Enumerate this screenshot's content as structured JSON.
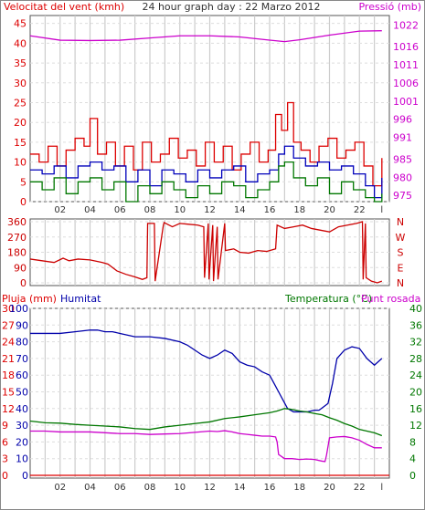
{
  "chart_data": [
    {
      "type": "line",
      "title": "24 hour graph day : 22 Marzo 2012",
      "left_axis": {
        "label": "Velocitat del vent (kmh)",
        "ticks": [
          0,
          5,
          10,
          15,
          20,
          25,
          30,
          35,
          40,
          45
        ],
        "range": [
          0,
          47
        ]
      },
      "right_axis": {
        "label": "Pressió (mb)",
        "ticks": [
          975,
          980,
          985,
          991,
          996,
          1001,
          1006,
          1011,
          1016,
          1022
        ],
        "range": [
          973.3,
          1024.6
        ]
      },
      "x_ticks": [
        "02",
        "04",
        "06",
        "08",
        "10",
        "12",
        "14",
        "16",
        "18",
        "20",
        "22",
        "l"
      ],
      "x_range": [
        0,
        24
      ],
      "series": [
        {
          "name": "Pressió",
          "color": "#cc00cc",
          "axis": "right",
          "x": [
            0,
            2,
            4,
            6,
            8,
            10,
            12,
            14,
            16,
            17,
            18,
            20,
            22,
            23.5
          ],
          "y": [
            1019,
            1017.8,
            1017.7,
            1017.8,
            1018.4,
            1019,
            1019,
            1018.7,
            1017.8,
            1017.4,
            1017.9,
            1019.2,
            1020.3,
            1020.4
          ]
        },
        {
          "color": "#dd0000",
          "axis": "left",
          "x": [
            0,
            0.6,
            1.2,
            1.8,
            2.4,
            3,
            3.6,
            4,
            4.5,
            5.1,
            5.7,
            6.3,
            6.9,
            7.5,
            8.1,
            8.7,
            9.3,
            9.9,
            10.5,
            11.1,
            11.7,
            12.3,
            12.9,
            13.5,
            14.1,
            14.7,
            15.3,
            15.9,
            16.4,
            16.8,
            17.2,
            17.6,
            18.1,
            18.7,
            19.3,
            19.9,
            20.5,
            21.1,
            21.7,
            22.3,
            22.9,
            23.5
          ],
          "y": [
            12,
            10,
            14,
            9,
            13,
            16,
            14,
            21,
            12,
            15,
            9,
            14,
            8,
            15,
            10,
            12,
            16,
            11,
            13,
            9,
            15,
            10,
            14,
            8,
            12,
            15,
            10,
            13,
            22,
            18,
            25,
            15,
            13,
            10,
            14,
            16,
            11,
            13,
            15,
            9,
            4,
            11
          ]
        },
        {
          "color": "#0000bb",
          "axis": "left",
          "x": [
            0,
            0.8,
            1.6,
            2.4,
            3.2,
            4,
            4.8,
            5.6,
            6.4,
            7.2,
            8,
            8.8,
            9.6,
            10.4,
            11.2,
            12,
            12.8,
            13.6,
            14.4,
            15.2,
            16,
            16.6,
            17,
            17.6,
            18.4,
            19.2,
            20,
            20.8,
            21.6,
            22.4,
            23,
            23.5
          ],
          "y": [
            8,
            7,
            9,
            6,
            9,
            10,
            8,
            9,
            5,
            8,
            4,
            8,
            7,
            5,
            8,
            6,
            8,
            9,
            5,
            7,
            8,
            12,
            14,
            11,
            9,
            10,
            8,
            9,
            7,
            4,
            1,
            6
          ]
        },
        {
          "color": "#007700",
          "axis": "left",
          "x": [
            0,
            0.8,
            1.6,
            2.4,
            3.2,
            4,
            4.8,
            5.6,
            6.4,
            7.2,
            8,
            8.8,
            9.6,
            10.4,
            11.2,
            12,
            12.8,
            13.6,
            14.4,
            15.2,
            16,
            16.6,
            17,
            17.6,
            18.4,
            19.2,
            20,
            20.8,
            21.6,
            22.4,
            23,
            23.5
          ],
          "y": [
            5,
            3,
            6,
            2,
            5,
            6,
            3,
            5,
            0,
            4,
            2,
            5,
            3,
            1,
            4,
            2,
            5,
            4,
            1,
            3,
            5,
            9,
            10,
            6,
            4,
            6,
            2,
            5,
            3,
            1,
            0,
            2
          ]
        }
      ]
    },
    {
      "type": "line",
      "left_axis": {
        "ticks": [
          0,
          90,
          180,
          270,
          360
        ]
      },
      "right_axis": {
        "ticks": [
          "N",
          "W",
          "S",
          "E",
          "N"
        ]
      },
      "x_range": [
        0,
        24
      ],
      "series": [
        {
          "color": "#cc0000",
          "x": [
            0,
            0.8,
            1.6,
            2.2,
            2.6,
            3.2,
            4,
            4.8,
            5.2,
            5.8,
            6.4,
            7,
            7.5,
            7.8,
            7.85,
            8.3,
            8.35,
            8.9,
            8.95,
            9.5,
            10,
            10.6,
            11.2,
            11.6,
            11.65,
            11.9,
            11.95,
            12.2,
            12.25,
            12.5,
            12.55,
            13,
            13.05,
            13.6,
            14,
            14.6,
            15.2,
            15.8,
            16.4,
            16.5,
            17,
            17.6,
            18.2,
            18.8,
            19.4,
            20,
            20.6,
            21.2,
            21.8,
            22.2,
            22.25,
            22.4,
            22.45,
            22.8,
            23.2,
            23.5
          ],
          "y": [
            140,
            130,
            120,
            145,
            130,
            140,
            135,
            120,
            110,
            70,
            50,
            35,
            20,
            30,
            350,
            350,
            10,
            340,
            355,
            330,
            350,
            345,
            340,
            330,
            30,
            350,
            20,
            340,
            10,
            330,
            20,
            350,
            190,
            200,
            180,
            175,
            190,
            185,
            200,
            340,
            320,
            330,
            340,
            320,
            310,
            300,
            330,
            340,
            350,
            360,
            20,
            350,
            30,
            10,
            0,
            10
          ]
        }
      ]
    },
    {
      "type": "line",
      "headers": [
        "Pluja (mm)",
        "Humitat",
        "Temperatura (°C)",
        "Punt rosada"
      ],
      "pluja_ticks": [
        0,
        3,
        6,
        9,
        12,
        15,
        18,
        21,
        24,
        27,
        30
      ],
      "humitat_ticks": [
        0,
        10,
        20,
        30,
        40,
        50,
        60,
        70,
        80,
        90,
        100
      ],
      "temp_ticks": [
        0,
        4,
        8,
        12,
        16,
        20,
        24,
        28,
        32,
        36,
        40
      ],
      "x_range": [
        0,
        24
      ],
      "series": [
        {
          "name": "Humitat",
          "color": "#0000aa",
          "axis": "humitat",
          "x": [
            0,
            1,
            2,
            3,
            4,
            4.5,
            5,
            5.5,
            6,
            7,
            8,
            9,
            10,
            10.5,
            11,
            11.5,
            12,
            12.5,
            13,
            13.5,
            14,
            14.5,
            15,
            15.5,
            16,
            16.3,
            16.6,
            16.9,
            17.2,
            17.6,
            18,
            18.5,
            19,
            19.3,
            19.6,
            19.9,
            20.2,
            20.5,
            21,
            21.5,
            22,
            22.5,
            23,
            23.5
          ],
          "y": [
            85,
            85,
            85,
            86,
            87,
            87,
            86,
            86,
            85,
            83,
            83,
            82,
            80,
            78,
            75,
            72,
            70,
            72,
            75,
            73,
            68,
            66,
            65,
            62,
            60,
            55,
            50,
            45,
            40,
            38,
            38,
            38,
            39,
            39,
            41,
            43,
            55,
            70,
            75,
            77,
            76,
            70,
            66,
            70
          ]
        },
        {
          "name": "Temperatura (°C)",
          "color": "#007700",
          "axis": "temp",
          "x": [
            0,
            1,
            2,
            3,
            4,
            5,
            6,
            7,
            8,
            9,
            10,
            11,
            12,
            13,
            14,
            15,
            16,
            16.5,
            17,
            17.5,
            18,
            18.5,
            19,
            19.5,
            20,
            20.5,
            21,
            21.5,
            22,
            22.5,
            23,
            23.5
          ],
          "y": [
            13,
            12.6,
            12.5,
            12.2,
            12,
            11.8,
            11.6,
            11.2,
            11,
            11.6,
            12,
            12.4,
            12.8,
            13.6,
            14,
            14.5,
            15,
            15.4,
            16,
            15.8,
            15.4,
            15.2,
            14.8,
            14.5,
            13.8,
            13.2,
            12.4,
            11.8,
            11,
            10.6,
            10.2,
            9.5
          ]
        },
        {
          "name": "Punt rosada",
          "color": "#cc00cc",
          "axis": "temp",
          "x": [
            0,
            1,
            2,
            3,
            4,
            5,
            6,
            7,
            8,
            9,
            10,
            11,
            12,
            12.5,
            13,
            13.5,
            14,
            14.5,
            15,
            15.5,
            16,
            16.4,
            16.5,
            16.6,
            17,
            17.5,
            18,
            18.5,
            19,
            19.5,
            19.7,
            19.8,
            20,
            20.5,
            21,
            21.5,
            22,
            22.5,
            23,
            23.5
          ],
          "y": [
            10.6,
            10.6,
            10.4,
            10.4,
            10.4,
            10.2,
            10,
            10,
            9.8,
            9.9,
            10,
            10.3,
            10.6,
            10.5,
            10.7,
            10.4,
            10,
            9.8,
            9.6,
            9.4,
            9.4,
            9.2,
            8,
            5,
            4,
            4,
            3.8,
            3.9,
            3.8,
            3.4,
            3.3,
            4.8,
            9,
            9.2,
            9.3,
            9,
            8.4,
            7.4,
            6.6,
            6.6
          ]
        },
        {
          "name": "Pluja (mm)",
          "color": "#dd0000",
          "axis": "pluja",
          "x": [
            0,
            24
          ],
          "y": [
            0,
            0
          ]
        }
      ]
    }
  ]
}
